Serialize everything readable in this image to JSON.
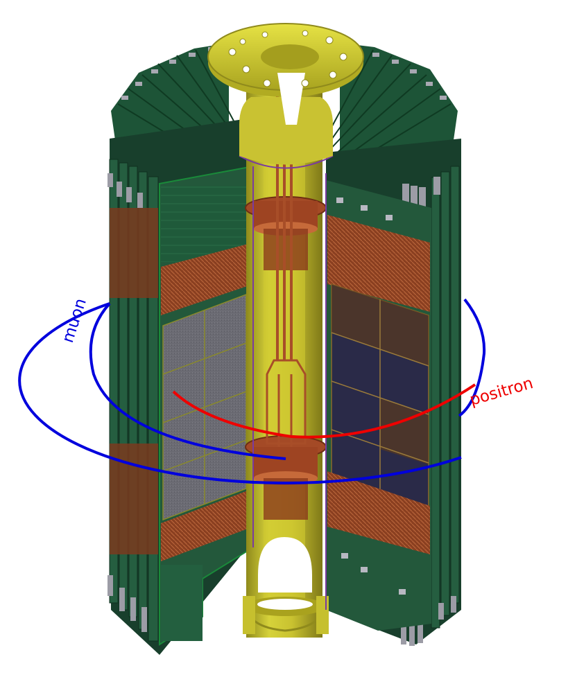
{
  "labels": {
    "muon": "muon",
    "positron": "positron"
  },
  "colors": {
    "muon_track": "#0000dd",
    "positron_track": "#ee0000",
    "pcb_green": "#1f5a3a",
    "pcb_green_light": "#2e6e4a",
    "flange_yellow": "#d8d428",
    "beampipe_yellow": "#c8c030",
    "cable_copper": "#a8502a",
    "sensor_grey": "#6a6a72",
    "sensor_dark": "#2a2a48",
    "connector_grey": "#9c9ca6",
    "frame_purple": "#7a3aa0"
  }
}
